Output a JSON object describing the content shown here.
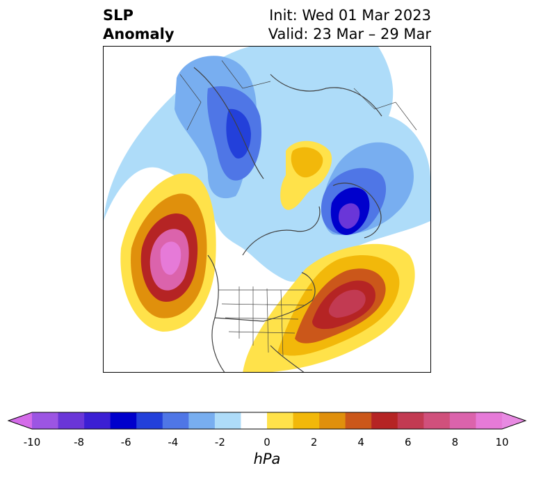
{
  "title": {
    "left_line1": "SLP",
    "left_line2": "Anomaly",
    "right_line1": "Init: Wed 01 Mar 2023",
    "right_line2": "Valid: 23 Mar – 29 Mar"
  },
  "colorbar": {
    "label": "hPa",
    "ticks": [
      "-10",
      "-8",
      "-6",
      "-4",
      "-2",
      "0",
      "2",
      "4",
      "6",
      "8",
      "10"
    ],
    "colors": [
      "#d46be9",
      "#9c55e3",
      "#6a36d8",
      "#3b1fd4",
      "#0000cc",
      "#2340da",
      "#4f76e6",
      "#78aef0",
      "#aedcf9",
      "#ffffff",
      "#ffe24a",
      "#f2b80a",
      "#e0900c",
      "#cb571a",
      "#b52424",
      "#c23a52",
      "#d0507c",
      "#db63ac",
      "#e67ad8",
      "#e88ae2"
    ]
  }
}
